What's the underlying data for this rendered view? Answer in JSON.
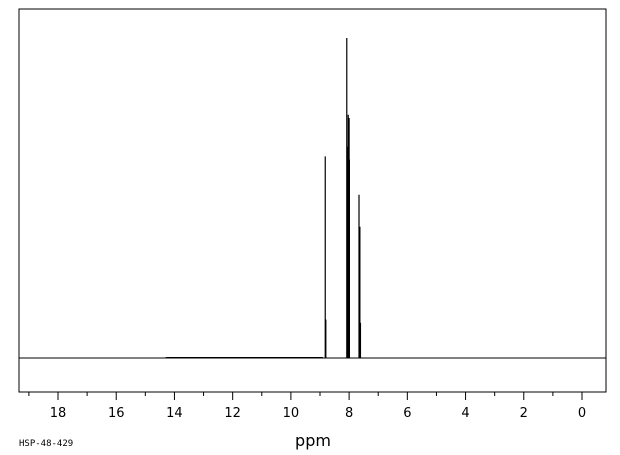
{
  "chart_data": {
    "type": "line",
    "title": "",
    "xlabel": "ppm",
    "ylabel": "",
    "xlim": [
      19.0,
      -0.8
    ],
    "ylim": [
      -0.1,
      1.0
    ],
    "x_reversed": true,
    "grid": false,
    "legend": "none",
    "x_ticks": [
      18,
      16,
      14,
      12,
      10,
      8,
      6,
      4,
      2,
      0
    ],
    "x_tick_labels": [
      "18",
      "16",
      "14",
      "12",
      "10",
      "8",
      "6",
      "4",
      "2",
      "0"
    ],
    "peaks": [
      {
        "x": 8.82,
        "y": 0.63
      },
      {
        "x": 8.8,
        "y": 0.12
      },
      {
        "x": 8.08,
        "y": 1.0
      },
      {
        "x": 8.05,
        "y": 0.66
      },
      {
        "x": 8.03,
        "y": 0.76
      },
      {
        "x": 8.0,
        "y": 0.75
      },
      {
        "x": 7.99,
        "y": 0.62
      },
      {
        "x": 7.66,
        "y": 0.51
      },
      {
        "x": 7.63,
        "y": 0.41
      },
      {
        "x": 7.61,
        "y": 0.11
      }
    ]
  },
  "sample_id": "HSP-48-429"
}
